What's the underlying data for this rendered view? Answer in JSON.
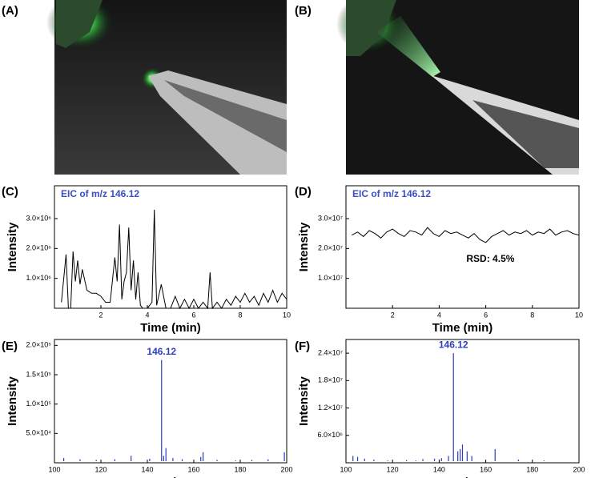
{
  "panel_labels": [
    "(A)",
    "(B)",
    "(C)",
    "(D)",
    "(E)",
    "(F)"
  ],
  "chart_data": [
    {
      "type": "line",
      "title": "EIC of m/z 146.12",
      "x_label": "Time (min)",
      "y_label": "Intensity",
      "color": "#000000",
      "xlim": [
        0,
        10
      ],
      "xticks": [
        2,
        4,
        6,
        8,
        10
      ],
      "ylim": [
        0,
        4100000
      ],
      "yticks": [
        {
          "value": 1000000,
          "label": "1.0×10⁶"
        },
        {
          "value": 2000000,
          "label": "2.0×10⁶"
        },
        {
          "value": 3000000,
          "label": "3.0×10⁶"
        }
      ],
      "x": [
        0.3,
        0.5,
        0.6,
        0.7,
        0.8,
        0.9,
        1.0,
        1.1,
        1.2,
        1.4,
        1.6,
        1.8,
        2.0,
        2.2,
        2.4,
        2.6,
        2.7,
        2.8,
        2.9,
        3.0,
        3.1,
        3.2,
        3.3,
        3.4,
        3.5,
        3.6,
        3.7,
        3.8,
        4.0,
        4.2,
        4.3,
        4.4,
        4.6,
        4.8,
        5.0,
        5.2,
        5.4,
        5.6,
        5.8,
        6.0,
        6.2,
        6.4,
        6.6,
        6.7,
        6.8,
        7.0,
        7.2,
        7.4,
        7.6,
        7.8,
        8.0,
        8.2,
        8.4,
        8.6,
        8.8,
        9.0,
        9.2,
        9.4,
        9.6,
        9.8,
        10.0
      ],
      "values": [
        200000,
        1800000,
        0,
        0,
        1900000,
        900000,
        1600000,
        800000,
        1300000,
        600000,
        500000,
        500000,
        400000,
        200000,
        200000,
        1700000,
        900000,
        2800000,
        300000,
        900000,
        1200000,
        2700000,
        600000,
        1600000,
        300000,
        1200000,
        100000,
        0,
        0,
        200000,
        3300000,
        100000,
        800000,
        0,
        0,
        400000,
        0,
        300000,
        0,
        300000,
        0,
        200000,
        0,
        1200000,
        0,
        200000,
        0,
        300000,
        100000,
        400000,
        200000,
        500000,
        200000,
        400000,
        100000,
        500000,
        200000,
        600000,
        200000,
        500000,
        300000
      ]
    },
    {
      "type": "line",
      "title": "EIC of m/z 146.12",
      "x_label": "Time (min)",
      "y_label": "Intensity",
      "color": "#000000",
      "annotation": "RSD: 4.5%",
      "xlim": [
        0,
        10
      ],
      "xticks": [
        2,
        4,
        6,
        8,
        10
      ],
      "ylim": [
        0,
        41000000
      ],
      "yticks": [
        {
          "value": 10000000,
          "label": "1.0×10⁷"
        },
        {
          "value": 20000000,
          "label": "2.0×10⁷"
        },
        {
          "value": 30000000,
          "label": "3.0×10⁷"
        }
      ],
      "x": [
        0.25,
        0.5,
        0.75,
        1.0,
        1.25,
        1.5,
        1.75,
        2.0,
        2.25,
        2.5,
        2.75,
        3.0,
        3.25,
        3.5,
        3.75,
        4.0,
        4.25,
        4.5,
        4.75,
        5.0,
        5.25,
        5.5,
        5.75,
        6.0,
        6.25,
        6.5,
        6.75,
        7.0,
        7.25,
        7.5,
        7.75,
        8.0,
        8.25,
        8.5,
        8.75,
        9.0,
        9.25,
        9.5,
        9.75,
        10.0
      ],
      "values": [
        24500000,
        25500000,
        24000000,
        26000000,
        25000000,
        23500000,
        25500000,
        26500000,
        25000000,
        24000000,
        26000000,
        25500000,
        24500000,
        27000000,
        25000000,
        24000000,
        26000000,
        25000000,
        25500000,
        24500000,
        23500000,
        25000000,
        23000000,
        22000000,
        24000000,
        25000000,
        26000000,
        24500000,
        25500000,
        25000000,
        26000000,
        24500000,
        25500000,
        25000000,
        26500000,
        24500000,
        25500000,
        26000000,
        25000000,
        24500000
      ]
    },
    {
      "type": "spectrum",
      "x_label": "m/z",
      "y_label": "Intensity",
      "color": "#2c3dbd",
      "annotation": "146.12",
      "xlim": [
        100,
        200
      ],
      "xticks": [
        100,
        120,
        140,
        160,
        180,
        200
      ],
      "ylim": [
        0,
        210000
      ],
      "yticks": [
        {
          "value": 50000,
          "label": "5.0×10⁴"
        },
        {
          "value": 100000,
          "label": "1.0×10⁵"
        },
        {
          "value": 150000,
          "label": "1.5×10⁵"
        },
        {
          "value": 200000,
          "label": "2.0×10⁵"
        }
      ],
      "x": [
        104,
        111,
        118,
        126,
        133,
        141,
        146.12,
        147,
        148,
        151,
        155,
        163,
        164,
        170,
        178,
        185,
        192,
        199
      ],
      "values": [
        8000,
        6000,
        5000,
        6000,
        12000,
        7000,
        175000,
        12000,
        25000,
        8000,
        6000,
        10000,
        18000,
        5000,
        4000,
        5000,
        6000,
        18000
      ]
    },
    {
      "type": "spectrum",
      "x_label": "m/z",
      "y_label": "Intensity",
      "color": "#2c3dbd",
      "annotation": "146.12",
      "xlim": [
        100,
        200
      ],
      "xticks": [
        100,
        120,
        140,
        160,
        180,
        200
      ],
      "ylim": [
        0,
        27000000
      ],
      "yticks": [
        {
          "value": 6000000,
          "label": "6.0×10⁶"
        },
        {
          "value": 12000000,
          "label": "1.2×10⁷"
        },
        {
          "value": 18000000,
          "label": "1.8×10⁷"
        },
        {
          "value": 24000000,
          "label": "2.4×10⁷"
        }
      ],
      "x": [
        103,
        105,
        108,
        112,
        118,
        126,
        130,
        133,
        138,
        141,
        144,
        146.12,
        148,
        149,
        150,
        152,
        154,
        164,
        174,
        185
      ],
      "values": [
        1500000,
        1300000,
        900000,
        700000,
        500000,
        600000,
        500000,
        800000,
        900000,
        1000000,
        1500000,
        24000000,
        2500000,
        3000000,
        4000000,
        2500000,
        1500000,
        3000000,
        700000,
        500000
      ]
    }
  ]
}
